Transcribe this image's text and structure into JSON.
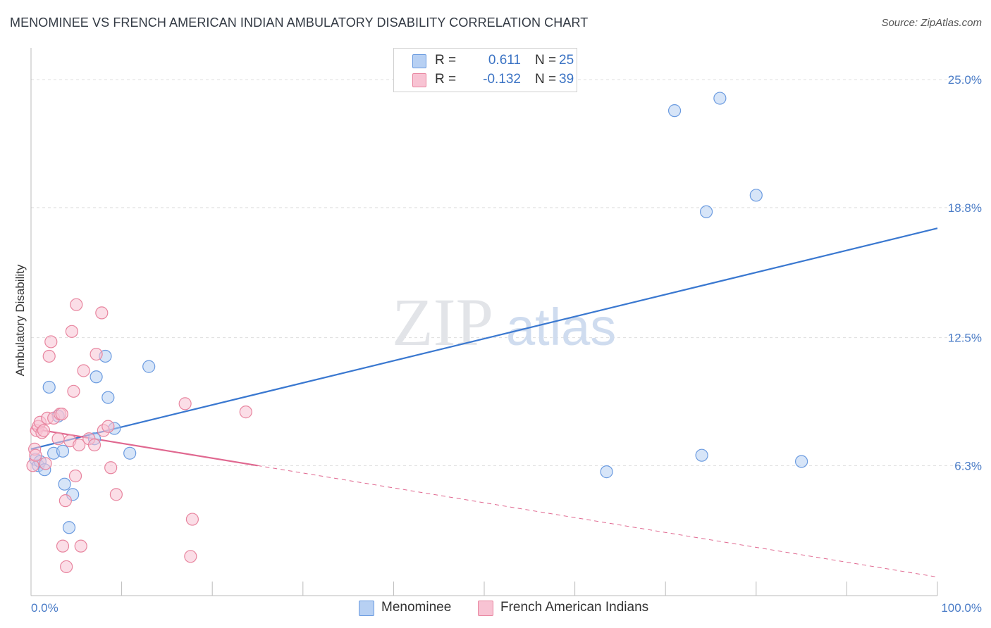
{
  "header": {
    "title": "MENOMINEE VS FRENCH AMERICAN INDIAN AMBULATORY DISABILITY CORRELATION CHART",
    "source": "Source: ZipAtlas.com"
  },
  "legend": {
    "menominee": {
      "r_label": "R =",
      "r_value": "0.611",
      "n_label": "N =",
      "n_value": "25"
    },
    "french": {
      "r_label": "R =",
      "r_value": "-0.132",
      "n_label": "N =",
      "n_value": "39"
    }
  },
  "bottom_legend": {
    "menominee": "Menominee",
    "french": "French American Indians"
  },
  "colors": {
    "menominee_fill": "#b7d0f3",
    "menominee_stroke": "#6b9be0",
    "menominee_line": "#3a78d0",
    "french_fill": "#f8c3d3",
    "french_stroke": "#e8859f",
    "french_line": "#e06890",
    "tick_text": "#4a7cc7",
    "grid": "#dddddd"
  },
  "watermark": {
    "zip": "ZIP",
    "atlas": "atlas"
  },
  "chart_data": {
    "type": "scatter",
    "title": "MENOMINEE VS FRENCH AMERICAN INDIAN AMBULATORY DISABILITY CORRELATION CHART",
    "xlabel": "",
    "ylabel": "Ambulatory Disability",
    "xlim": [
      0,
      100
    ],
    "ylim": [
      0,
      26.2
    ],
    "x_tick_labels": [
      "0.0%",
      "100.0%"
    ],
    "y_ticks": [
      6.3,
      12.5,
      18.8,
      25.0
    ],
    "y_tick_labels": [
      "6.3%",
      "12.5%",
      "18.8%",
      "25.0%"
    ],
    "x_minor_ticks": [
      0,
      10,
      20,
      30,
      40,
      50,
      60,
      70,
      80,
      90,
      100
    ],
    "grid": true,
    "series": [
      {
        "name": "Menominee",
        "points": [
          [
            0.5,
            6.6
          ],
          [
            0.8,
            6.3
          ],
          [
            1.0,
            6.5
          ],
          [
            1.5,
            6.1
          ],
          [
            2.0,
            10.1
          ],
          [
            2.5,
            6.9
          ],
          [
            3.0,
            8.7
          ],
          [
            3.5,
            7.0
          ],
          [
            3.7,
            5.4
          ],
          [
            4.2,
            3.3
          ],
          [
            4.6,
            4.9
          ],
          [
            7.0,
            7.6
          ],
          [
            7.2,
            10.6
          ],
          [
            8.2,
            11.6
          ],
          [
            8.5,
            9.6
          ],
          [
            9.2,
            8.1
          ],
          [
            10.9,
            6.9
          ],
          [
            13.0,
            11.1
          ],
          [
            63.5,
            6.0
          ],
          [
            71.0,
            23.5
          ],
          [
            74.0,
            6.8
          ],
          [
            74.5,
            18.6
          ],
          [
            76.0,
            24.1
          ],
          [
            80.0,
            19.4
          ],
          [
            85.0,
            6.5
          ]
        ],
        "trend": {
          "x0": 0,
          "y0": 7.1,
          "x1": 100,
          "y1": 17.8,
          "dashed_from": null
        }
      },
      {
        "name": "French American Indians",
        "points": [
          [
            0.2,
            6.3
          ],
          [
            0.4,
            7.1
          ],
          [
            0.5,
            6.8
          ],
          [
            0.6,
            8.0
          ],
          [
            0.8,
            8.2
          ],
          [
            1.0,
            8.4
          ],
          [
            1.2,
            7.9
          ],
          [
            1.4,
            8.0
          ],
          [
            1.6,
            6.4
          ],
          [
            1.8,
            8.6
          ],
          [
            2.0,
            11.6
          ],
          [
            2.2,
            12.3
          ],
          [
            2.5,
            8.6
          ],
          [
            3.0,
            7.6
          ],
          [
            3.2,
            8.8
          ],
          [
            3.4,
            8.8
          ],
          [
            3.5,
            2.4
          ],
          [
            3.8,
            4.6
          ],
          [
            3.9,
            1.4
          ],
          [
            4.3,
            7.5
          ],
          [
            4.5,
            12.8
          ],
          [
            4.7,
            9.9
          ],
          [
            4.9,
            5.8
          ],
          [
            5.0,
            14.1
          ],
          [
            5.3,
            7.3
          ],
          [
            5.5,
            2.4
          ],
          [
            5.8,
            10.9
          ],
          [
            6.4,
            7.6
          ],
          [
            7.0,
            7.3
          ],
          [
            7.2,
            11.7
          ],
          [
            7.8,
            13.7
          ],
          [
            8.0,
            8.0
          ],
          [
            8.5,
            8.2
          ],
          [
            8.8,
            6.2
          ],
          [
            9.4,
            4.9
          ],
          [
            17.0,
            9.3
          ],
          [
            17.8,
            3.7
          ],
          [
            17.6,
            1.9
          ],
          [
            23.7,
            8.9
          ]
        ],
        "trend": {
          "x0": 0,
          "y0": 8.1,
          "x1": 100,
          "y1": 0.9,
          "solid_until": 25
        }
      }
    ]
  }
}
